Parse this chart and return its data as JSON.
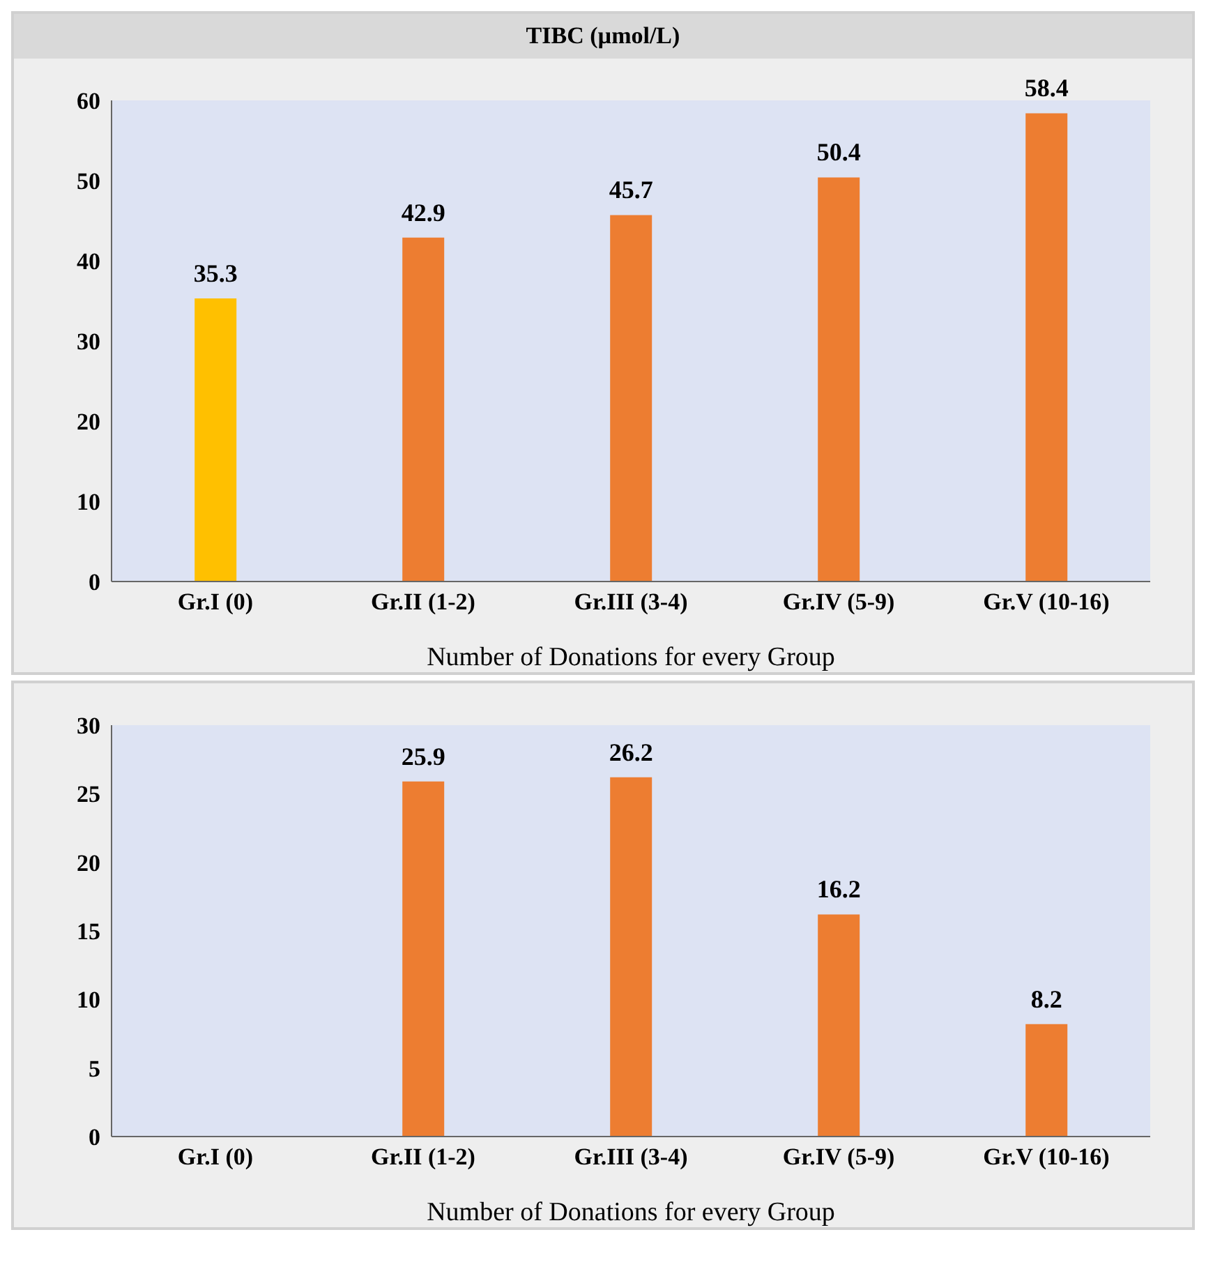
{
  "chart_data": [
    {
      "type": "bar",
      "title": "TIBC (µmol/L)",
      "xlabel": "Number of Donations for every Group",
      "categories": [
        "Gr.I (0)",
        "Gr.II (1-2)",
        "Gr.III (3-4)",
        "Gr.IV (5-9)",
        "Gr.V (10-16)"
      ],
      "values": [
        35.3,
        42.9,
        45.7,
        50.4,
        58.4
      ],
      "colors": [
        "#ffc000",
        "#ed7d31",
        "#ed7d31",
        "#ed7d31",
        "#ed7d31"
      ],
      "ylim": [
        0,
        60
      ],
      "yticks": [
        0,
        10,
        20,
        30,
        40,
        50,
        60
      ],
      "data_labels": true,
      "grid": false,
      "legend": false
    },
    {
      "type": "bar",
      "xlabel": "Number of Donations for every Group",
      "categories": [
        "Gr.I (0)",
        "Gr.II (1-2)",
        "Gr.III (3-4)",
        "Gr.IV (5-9)",
        "Gr.V (10-16)"
      ],
      "values": [
        null,
        25.9,
        26.2,
        16.2,
        8.2
      ],
      "colors": [
        "#ffc000",
        "#ed7d31",
        "#ed7d31",
        "#ed7d31",
        "#ed7d31"
      ],
      "ylim": [
        0,
        30
      ],
      "yticks": [
        0,
        5,
        10,
        15,
        20,
        25,
        30
      ],
      "data_labels": true,
      "grid": false,
      "legend": false
    }
  ]
}
